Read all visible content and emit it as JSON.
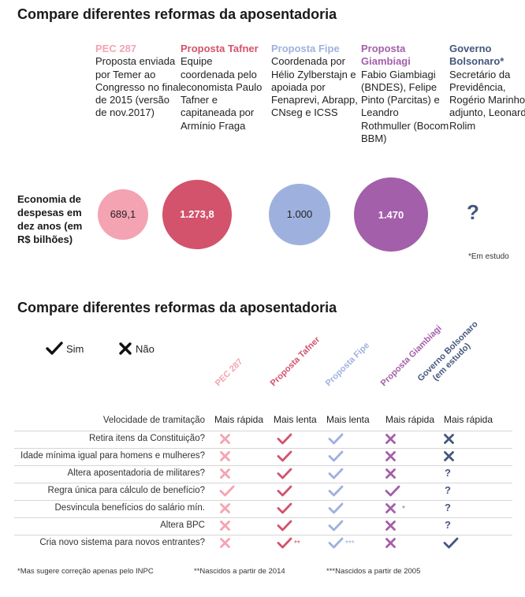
{
  "section1": {
    "title": "Compare diferentes reformas da aposentadoria",
    "economy_label": "Economia de despesas em dez anos (em R$ bilhões)",
    "note": "*Em estudo",
    "proposals": [
      {
        "name": "PEC 287",
        "desc": "Proposta enviada por Temer ao Congresso no final de 2015 (versão de nov.2017)"
      },
      {
        "name": "Proposta Tafner",
        "desc": "Equipe coordenada pelo economista Paulo Tafner e capitaneada por Armínio Fraga"
      },
      {
        "name": "Proposta Fipe",
        "desc": "Coordenada por Hélio Zylberstajn e apoiada por Fenaprevi, Abrapp, CNseg e ICSS"
      },
      {
        "name": "Proposta Giambiagi",
        "desc": "Fabio Giambiagi (BNDES), Felipe Pinto (Parcitas) e Leandro Rothmuller (Bocom BBM)"
      },
      {
        "name": "Governo Bolsonaro*",
        "desc": "Secretário da Previdência, Rogério Marinho, e adjunto, Leonardo Rolim"
      }
    ],
    "bubble_labels": [
      "689,1",
      "1.273,8",
      "1.000",
      "1.470",
      "?"
    ]
  },
  "section2": {
    "title": "Compare diferentes reformas da aposentadoria",
    "legend": {
      "yes": "Sim",
      "no": "Não"
    },
    "columns": [
      "PEC 287",
      "Proposta Tafner",
      "Proposta Fipe",
      "Proposta Giambiagi",
      "Governo Bolsonaro (em estudo)"
    ],
    "speed_label": "Velocidade de tramitação",
    "speeds": [
      "Mais rápida",
      "Mais lenta",
      "Mais lenta",
      "Mais rápida",
      "Mais rápida"
    ],
    "rows": [
      {
        "label": "Retira itens da Constituição?",
        "marks": [
          "no",
          "yes",
          "yes",
          "no",
          "no"
        ],
        "sups": [
          "",
          "",
          "",
          "",
          ""
        ]
      },
      {
        "label": "Idade mínima igual para homens e mulheres?",
        "marks": [
          "no",
          "yes",
          "yes",
          "no",
          "no"
        ],
        "sups": [
          "",
          "",
          "",
          "",
          ""
        ]
      },
      {
        "label": "Altera aposentadoria de militares?",
        "marks": [
          "no",
          "yes",
          "yes",
          "no",
          "unknown"
        ],
        "sups": [
          "",
          "",
          "",
          "",
          ""
        ]
      },
      {
        "label": "Regra única para cálculo de benefício?",
        "marks": [
          "yes",
          "yes",
          "yes",
          "yes",
          "unknown"
        ],
        "sups": [
          "",
          "",
          "",
          "",
          ""
        ]
      },
      {
        "label": "Desvincula benefícios do salário mín.",
        "marks": [
          "no",
          "yes",
          "yes",
          "no",
          "unknown"
        ],
        "sups": [
          "",
          "",
          "",
          "*",
          ""
        ]
      },
      {
        "label": "Altera BPC",
        "marks": [
          "no",
          "yes",
          "yes",
          "no",
          "unknown"
        ],
        "sups": [
          "",
          "",
          "",
          "",
          ""
        ]
      },
      {
        "label": "Cria novo sistema para novos entrantes?",
        "marks": [
          "no",
          "yes",
          "yes",
          "no",
          "yes"
        ],
        "sups": [
          "",
          "**",
          "***",
          "",
          ""
        ]
      }
    ],
    "unknown_symbol": "?",
    "footnotes": [
      "*Mas sugere correção apenas pelo INPC",
      "**Nascidos a partir de 2014",
      "***Nascidos a partir de 2005"
    ]
  },
  "chart_data": [
    {
      "type": "bubble",
      "title": "Compare diferentes reformas da aposentadoria",
      "ylabel": "Economia de despesas em dez anos (em R$ bilhões)",
      "categories": [
        "PEC 287",
        "Proposta Tafner",
        "Proposta Fipe",
        "Proposta Giambiagi",
        "Governo Bolsonaro*"
      ],
      "values": [
        689.1,
        1273.8,
        1000,
        1470,
        null
      ]
    },
    {
      "type": "table",
      "title": "Compare diferentes reformas da aposentadoria"
    }
  ],
  "colors": {
    "pec": "#f4a3b3",
    "tafner": "#d3536c",
    "fipe": "#9eb1de",
    "giambiagi": "#a35fa9",
    "bolsonaro": "#45577e",
    "text": "#222222"
  }
}
